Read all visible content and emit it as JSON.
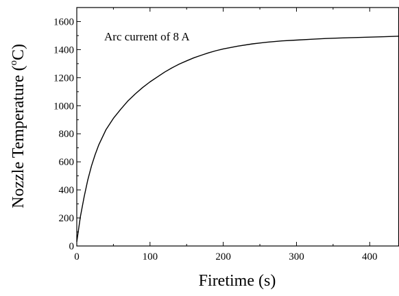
{
  "chart_data": {
    "type": "line",
    "title": "",
    "xlabel": "Firetime (s)",
    "ylabel_main": "Nozzle Temperature (",
    "ylabel_sup": "o",
    "ylabel_end": "C)",
    "annotation": "Arc current of 8 A",
    "xlim": [
      0,
      440
    ],
    "ylim": [
      0,
      1700
    ],
    "x_ticks": [
      0,
      100,
      200,
      300,
      400
    ],
    "y_ticks": [
      0,
      200,
      400,
      600,
      800,
      1000,
      1200,
      1400,
      1600
    ],
    "grid": false,
    "legend": "none",
    "line_color": "#000000",
    "series": [
      {
        "x": [
          0,
          5,
          10,
          15,
          20,
          25,
          30,
          40,
          50,
          60,
          70,
          80,
          90,
          100,
          110,
          120,
          130,
          140,
          150,
          160,
          170,
          180,
          190,
          200,
          220,
          240,
          260,
          280,
          300,
          320,
          340,
          360,
          380,
          400,
          420,
          440
        ],
        "values": [
          30,
          210,
          350,
          470,
          570,
          650,
          720,
          830,
          910,
          975,
          1035,
          1085,
          1130,
          1170,
          1205,
          1240,
          1270,
          1297,
          1320,
          1342,
          1360,
          1377,
          1392,
          1405,
          1425,
          1441,
          1453,
          1462,
          1468,
          1474,
          1479,
          1483,
          1486,
          1489,
          1492,
          1496
        ]
      }
    ]
  }
}
